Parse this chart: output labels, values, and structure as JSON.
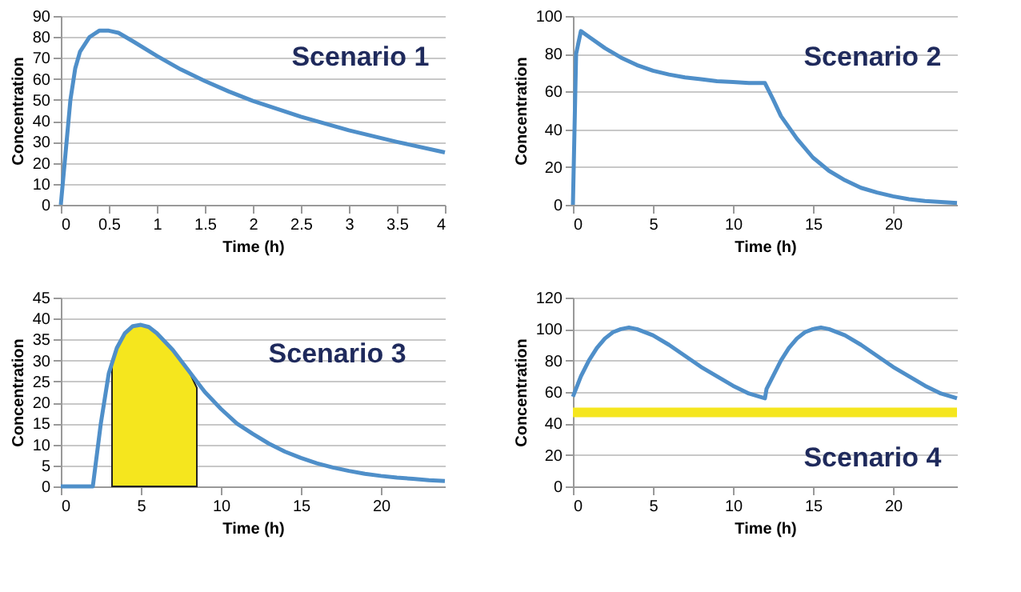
{
  "chart_data": [
    {
      "type": "line",
      "title": "Scenario 1",
      "xlabel": "Time (h)",
      "ylabel": "Concentration",
      "xlim": [
        0,
        4
      ],
      "xticks": [
        0,
        0.5,
        1,
        1.5,
        2,
        2.5,
        3,
        3.5,
        4
      ],
      "ylim": [
        0,
        90
      ],
      "yticks": [
        0,
        10,
        20,
        30,
        40,
        50,
        60,
        70,
        80,
        90
      ],
      "grid": "y",
      "series": [
        {
          "color": "#4f8fc9",
          "x": [
            0,
            0.05,
            0.1,
            0.15,
            0.2,
            0.3,
            0.4,
            0.5,
            0.6,
            0.75,
            1,
            1.25,
            1.5,
            1.75,
            2,
            2.5,
            3,
            3.5,
            4
          ],
          "values": [
            0,
            25,
            50,
            65,
            73,
            80,
            83,
            83,
            82,
            78,
            71,
            64.5,
            59,
            54,
            49.5,
            42,
            35.5,
            30,
            25
          ]
        }
      ]
    },
    {
      "type": "line",
      "title": "Scenario 2",
      "xlabel": "Time (h)",
      "ylabel": "Concentration",
      "xlim": [
        0,
        24
      ],
      "xticks": [
        0,
        5,
        10,
        15,
        20
      ],
      "ylim": [
        0,
        100
      ],
      "yticks": [
        0,
        20,
        40,
        60,
        80,
        100
      ],
      "grid": "y",
      "series": [
        {
          "color": "#4f8fc9",
          "x": [
            0,
            0.2,
            0.5,
            1,
            2,
            3,
            4,
            5,
            6,
            7,
            8,
            9,
            10,
            11,
            12,
            12.5,
            13,
            14,
            15,
            16,
            17,
            18,
            19,
            20,
            21,
            22,
            23,
            24
          ],
          "values": [
            0,
            80,
            92,
            89,
            83,
            78,
            74,
            71,
            69,
            67.5,
            66.5,
            65.5,
            65,
            64.5,
            64.5,
            56,
            47,
            35,
            25,
            18,
            13,
            9,
            6.5,
            4.5,
            3,
            2,
            1.5,
            1
          ]
        }
      ]
    },
    {
      "type": "line",
      "title": "Scenario 3",
      "xlabel": "Time (h)",
      "ylabel": "Concentration",
      "xlim": [
        0,
        24
      ],
      "xticks": [
        0,
        5,
        10,
        15,
        20
      ],
      "ylim": [
        0,
        45
      ],
      "yticks": [
        0,
        5,
        10,
        15,
        20,
        25,
        30,
        35,
        40,
        45
      ],
      "grid": "y",
      "series": [
        {
          "type": "area",
          "color": "#f5e61e",
          "x": [
            3.2,
            3.5,
            4,
            4.5,
            5,
            5.5,
            6,
            7,
            8,
            8.5
          ],
          "values": [
            30,
            33,
            36.5,
            38.2,
            38.5,
            38,
            36.5,
            32.5,
            27.5,
            23.5
          ]
        },
        {
          "color": "#4f8fc9",
          "x": [
            0,
            2,
            2.5,
            3,
            3.5,
            4,
            4.5,
            5,
            5.5,
            6,
            7,
            8,
            9,
            10,
            11,
            12,
            13,
            14,
            15,
            16,
            17,
            18,
            19,
            20,
            21,
            22,
            23,
            24
          ],
          "values": [
            0,
            0,
            15,
            27,
            33,
            36.5,
            38.2,
            38.5,
            38,
            36.5,
            32.5,
            27.5,
            22.5,
            18.5,
            15,
            12.5,
            10.2,
            8.3,
            6.8,
            5.5,
            4.5,
            3.7,
            3,
            2.5,
            2.1,
            1.8,
            1.5,
            1.3
          ]
        }
      ]
    },
    {
      "type": "line",
      "title": "Scenario 4",
      "xlabel": "Time (h)",
      "ylabel": "Concentration",
      "xlim": [
        0,
        24
      ],
      "xticks": [
        0,
        5,
        10,
        15,
        20
      ],
      "ylim": [
        0,
        120
      ],
      "yticks": [
        0,
        20,
        40,
        60,
        80,
        100,
        120
      ],
      "grid": "y",
      "ref_lines": [
        {
          "axis": "y",
          "value": 47,
          "color": "#f5e61e"
        }
      ],
      "series": [
        {
          "color": "#4f8fc9",
          "x": [
            0,
            0.5,
            1,
            1.5,
            2,
            2.5,
            3,
            3.5,
            4,
            5,
            6,
            7,
            8,
            9,
            10,
            11,
            12,
            12.1,
            12.5,
            13,
            13.5,
            14,
            14.5,
            15,
            15.5,
            16,
            17,
            18,
            19,
            20,
            21,
            22,
            23,
            24
          ],
          "values": [
            57,
            70,
            80,
            88,
            94,
            98,
            100,
            101,
            100,
            96,
            90,
            83,
            76,
            70,
            64,
            59,
            56,
            62,
            70,
            80,
            88,
            94,
            98,
            100,
            101,
            100,
            96,
            90,
            83,
            76,
            70,
            64,
            59,
            56
          ]
        }
      ]
    }
  ]
}
